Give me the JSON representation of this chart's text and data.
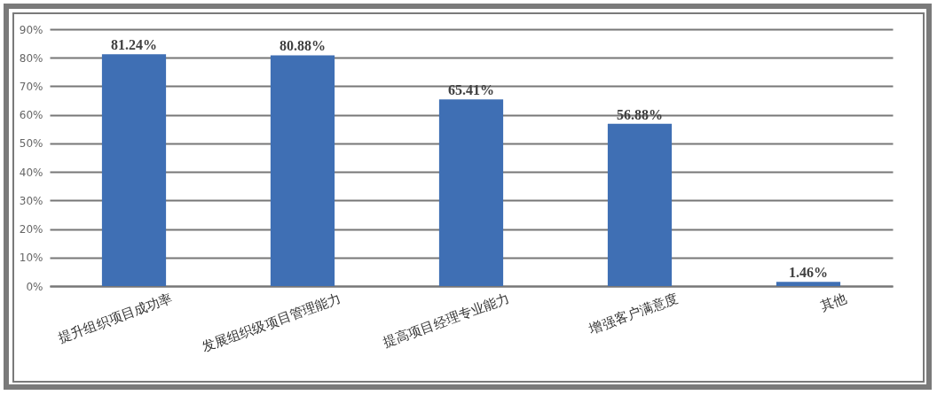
{
  "chart_data": {
    "type": "bar",
    "categories": [
      "提升组织项目成功率",
      "发展组织级项目管理能力",
      "提高项目经理专业能力",
      "增强客户满意度",
      "其他"
    ],
    "values": [
      81.24,
      80.88,
      65.41,
      56.88,
      1.46
    ],
    "value_labels": [
      "81.24%",
      "80.88%",
      "65.41%",
      "56.88%",
      "1.46%"
    ],
    "color": "#3f6fb4",
    "ylim": [
      0,
      90
    ],
    "yticks": [
      {
        "value": 0,
        "label": "0%"
      },
      {
        "value": 10,
        "label": "10%"
      },
      {
        "value": 20,
        "label": "20%"
      },
      {
        "value": 30,
        "label": "30%"
      },
      {
        "value": 40,
        "label": "40%"
      },
      {
        "value": 50,
        "label": "50%"
      },
      {
        "value": 60,
        "label": "60%"
      },
      {
        "value": 70,
        "label": "70%"
      },
      {
        "value": 80,
        "label": "80%"
      },
      {
        "value": 90,
        "label": "90%"
      }
    ],
    "grid": "y"
  }
}
